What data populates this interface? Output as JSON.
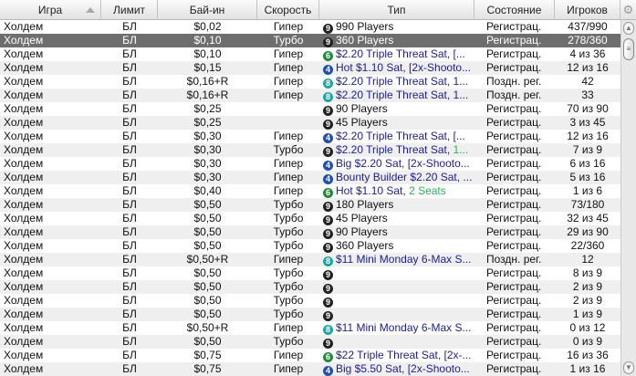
{
  "columns": [
    "Игра",
    "Лимит",
    "Бай-ин",
    "Скорость",
    "Тип",
    "Состояние",
    "Игроков"
  ],
  "settings_icon": "gear-icon",
  "badge_colors": {
    "9": "#222222",
    "6": "#1e8a3a",
    "4": "#1f4fb0",
    "8": "#1aa8a0"
  },
  "rows": [
    {
      "game": "Холдем",
      "limit": "БЛ",
      "buyin": "$0,02",
      "speed": "Гипер",
      "badge": "9",
      "type": "990 Players",
      "type_style": "plain",
      "extra": "",
      "state": "Регистрац.",
      "players": "437/990"
    },
    {
      "game": "Холдем",
      "limit": "БЛ",
      "buyin": "$0,10",
      "speed": "Турбо",
      "badge": "9",
      "type": "360 Players",
      "type_style": "plain",
      "extra": "",
      "state": "Регистрац.",
      "players": "278/360",
      "selected": true
    },
    {
      "game": "Холдем",
      "limit": "БЛ",
      "buyin": "$0,10",
      "speed": "Гипер",
      "badge": "6",
      "type": "$2.20 Triple Threat  Sat, [...",
      "type_style": "blue",
      "extra": "",
      "state": "Регистрац.",
      "players": "4 из 36"
    },
    {
      "game": "Холдем",
      "limit": "БЛ",
      "buyin": "$0,15",
      "speed": "Гипер",
      "badge": "4",
      "type": "Hot $1.10 Sat, [2x-Shooto...",
      "type_style": "blue",
      "extra": "",
      "state": "Регистрац.",
      "players": "12 из 16"
    },
    {
      "game": "Холдем",
      "limit": "БЛ",
      "buyin": "$0,16+R",
      "speed": "Гипер",
      "badge": "8",
      "type": "$2.20 Triple Threat  Sat, 1...",
      "type_style": "blue",
      "extra": "",
      "state": "Поздн. рег.",
      "players": "42"
    },
    {
      "game": "Холдем",
      "limit": "БЛ",
      "buyin": "$0,16+R",
      "speed": "Гипер",
      "badge": "8",
      "type": "$2.20 Triple Threat  Sat, 1...",
      "type_style": "blue",
      "extra": "",
      "state": "Поздн. рег.",
      "players": "33"
    },
    {
      "game": "Холдем",
      "limit": "БЛ",
      "buyin": "$0,25",
      "speed": "",
      "badge": "9",
      "type": "90 Players",
      "type_style": "plain",
      "extra": "",
      "state": "Регистрац.",
      "players": "70 из 90"
    },
    {
      "game": "Холдем",
      "limit": "БЛ",
      "buyin": "$0,25",
      "speed": "",
      "badge": "9",
      "type": "45 Players",
      "type_style": "plain",
      "extra": "",
      "state": "Регистрац.",
      "players": "3 из 45"
    },
    {
      "game": "Холдем",
      "limit": "БЛ",
      "buyin": "$0,30",
      "speed": "Гипер",
      "badge": "4",
      "type": "$2.20 Triple Threat  Sat, [...",
      "type_style": "blue",
      "extra": "",
      "state": "Регистрац.",
      "players": "12 из 16"
    },
    {
      "game": "Холдем",
      "limit": "БЛ",
      "buyin": "$0,30",
      "speed": "Турбо",
      "badge": "9",
      "type": "$2.20 Triple Threat  Sat, ",
      "type_style": "blue",
      "extra": "1...",
      "state": "Регистрац.",
      "players": "7 из 9"
    },
    {
      "game": "Холдем",
      "limit": "БЛ",
      "buyin": "$0,30",
      "speed": "Гипер",
      "badge": "4",
      "type": "Big $2.20 Sat, [2x-Shooto...",
      "type_style": "blue",
      "extra": "",
      "state": "Регистрац.",
      "players": "6 из 16"
    },
    {
      "game": "Холдем",
      "limit": "БЛ",
      "buyin": "$0,30",
      "speed": "Гипер",
      "badge": "4",
      "type": "Bounty Builder $2.20 Sat, ...",
      "type_style": "blue",
      "extra": "",
      "state": "Регистрац.",
      "players": "5 из 16"
    },
    {
      "game": "Холдем",
      "limit": "БЛ",
      "buyin": "$0,40",
      "speed": "Гипер",
      "badge": "6",
      "type": "Hot $1.10 Sat, ",
      "type_style": "blue",
      "extra": "2 Seats",
      "state": "Регистрац.",
      "players": "1 из 6"
    },
    {
      "game": "Холдем",
      "limit": "БЛ",
      "buyin": "$0,50",
      "speed": "Турбо",
      "badge": "9",
      "type": "180 Players",
      "type_style": "plain",
      "extra": "",
      "state": "Регистрац.",
      "players": "73/180"
    },
    {
      "game": "Холдем",
      "limit": "БЛ",
      "buyin": "$0,50",
      "speed": "Турбо",
      "badge": "9",
      "type": "45 Players",
      "type_style": "plain",
      "extra": "",
      "state": "Регистрац.",
      "players": "32 из 45"
    },
    {
      "game": "Холдем",
      "limit": "БЛ",
      "buyin": "$0,50",
      "speed": "Турбо",
      "badge": "9",
      "type": "90 Players",
      "type_style": "plain",
      "extra": "",
      "state": "Регистрац.",
      "players": "29 из 90"
    },
    {
      "game": "Холдем",
      "limit": "БЛ",
      "buyin": "$0,50",
      "speed": "Турбо",
      "badge": "9",
      "type": "360 Players",
      "type_style": "plain",
      "extra": "",
      "state": "Регистрац.",
      "players": "22/360"
    },
    {
      "game": "Холдем",
      "limit": "БЛ",
      "buyin": "$0,50+R",
      "speed": "Гипер",
      "badge": "8",
      "type": "$11 Mini Monday 6-Max  S...",
      "type_style": "blue",
      "extra": "",
      "state": "Поздн. рег.",
      "players": "12"
    },
    {
      "game": "Холдем",
      "limit": "БЛ",
      "buyin": "$0,50",
      "speed": "Турбо",
      "badge": "9",
      "type": "",
      "type_style": "plain",
      "extra": "",
      "state": "Регистрац.",
      "players": "8 из 9"
    },
    {
      "game": "Холдем",
      "limit": "БЛ",
      "buyin": "$0,50",
      "speed": "Турбо",
      "badge": "9",
      "type": "",
      "type_style": "plain",
      "extra": "",
      "state": "Регистрац.",
      "players": "2 из 9"
    },
    {
      "game": "Холдем",
      "limit": "БЛ",
      "buyin": "$0,50",
      "speed": "Турбо",
      "badge": "9",
      "type": "",
      "type_style": "plain",
      "extra": "",
      "state": "Регистрац.",
      "players": "2 из 9"
    },
    {
      "game": "Холдем",
      "limit": "БЛ",
      "buyin": "$0,50",
      "speed": "Турбо",
      "badge": "9",
      "type": "",
      "type_style": "plain",
      "extra": "",
      "state": "Регистрац.",
      "players": "1 из 9"
    },
    {
      "game": "Холдем",
      "limit": "БЛ",
      "buyin": "$0,50+R",
      "speed": "Гипер",
      "badge": "8",
      "type": "$11 Mini Monday 6-Max  S...",
      "type_style": "blue",
      "extra": "",
      "state": "Регистрац.",
      "players": "0 из 12"
    },
    {
      "game": "Холдем",
      "limit": "БЛ",
      "buyin": "$0,50",
      "speed": "Турбо",
      "badge": "9",
      "type": "",
      "type_style": "plain",
      "extra": "",
      "state": "Регистрац.",
      "players": "0 из 9"
    },
    {
      "game": "Холдем",
      "limit": "БЛ",
      "buyin": "$0,75",
      "speed": "Гипер",
      "badge": "6",
      "type": "$22 Triple Threat  Sat, [2x-...",
      "type_style": "blue",
      "extra": "",
      "state": "Регистрац.",
      "players": "16 из 36"
    },
    {
      "game": "Холдем",
      "limit": "БЛ",
      "buyin": "$0,75",
      "speed": "Гипер",
      "badge": "4",
      "type": "Big $5.50 Sat, [2x-Shooto...",
      "type_style": "blue",
      "extra": "",
      "state": "Регистрац.",
      "players": "1 из 16"
    }
  ]
}
